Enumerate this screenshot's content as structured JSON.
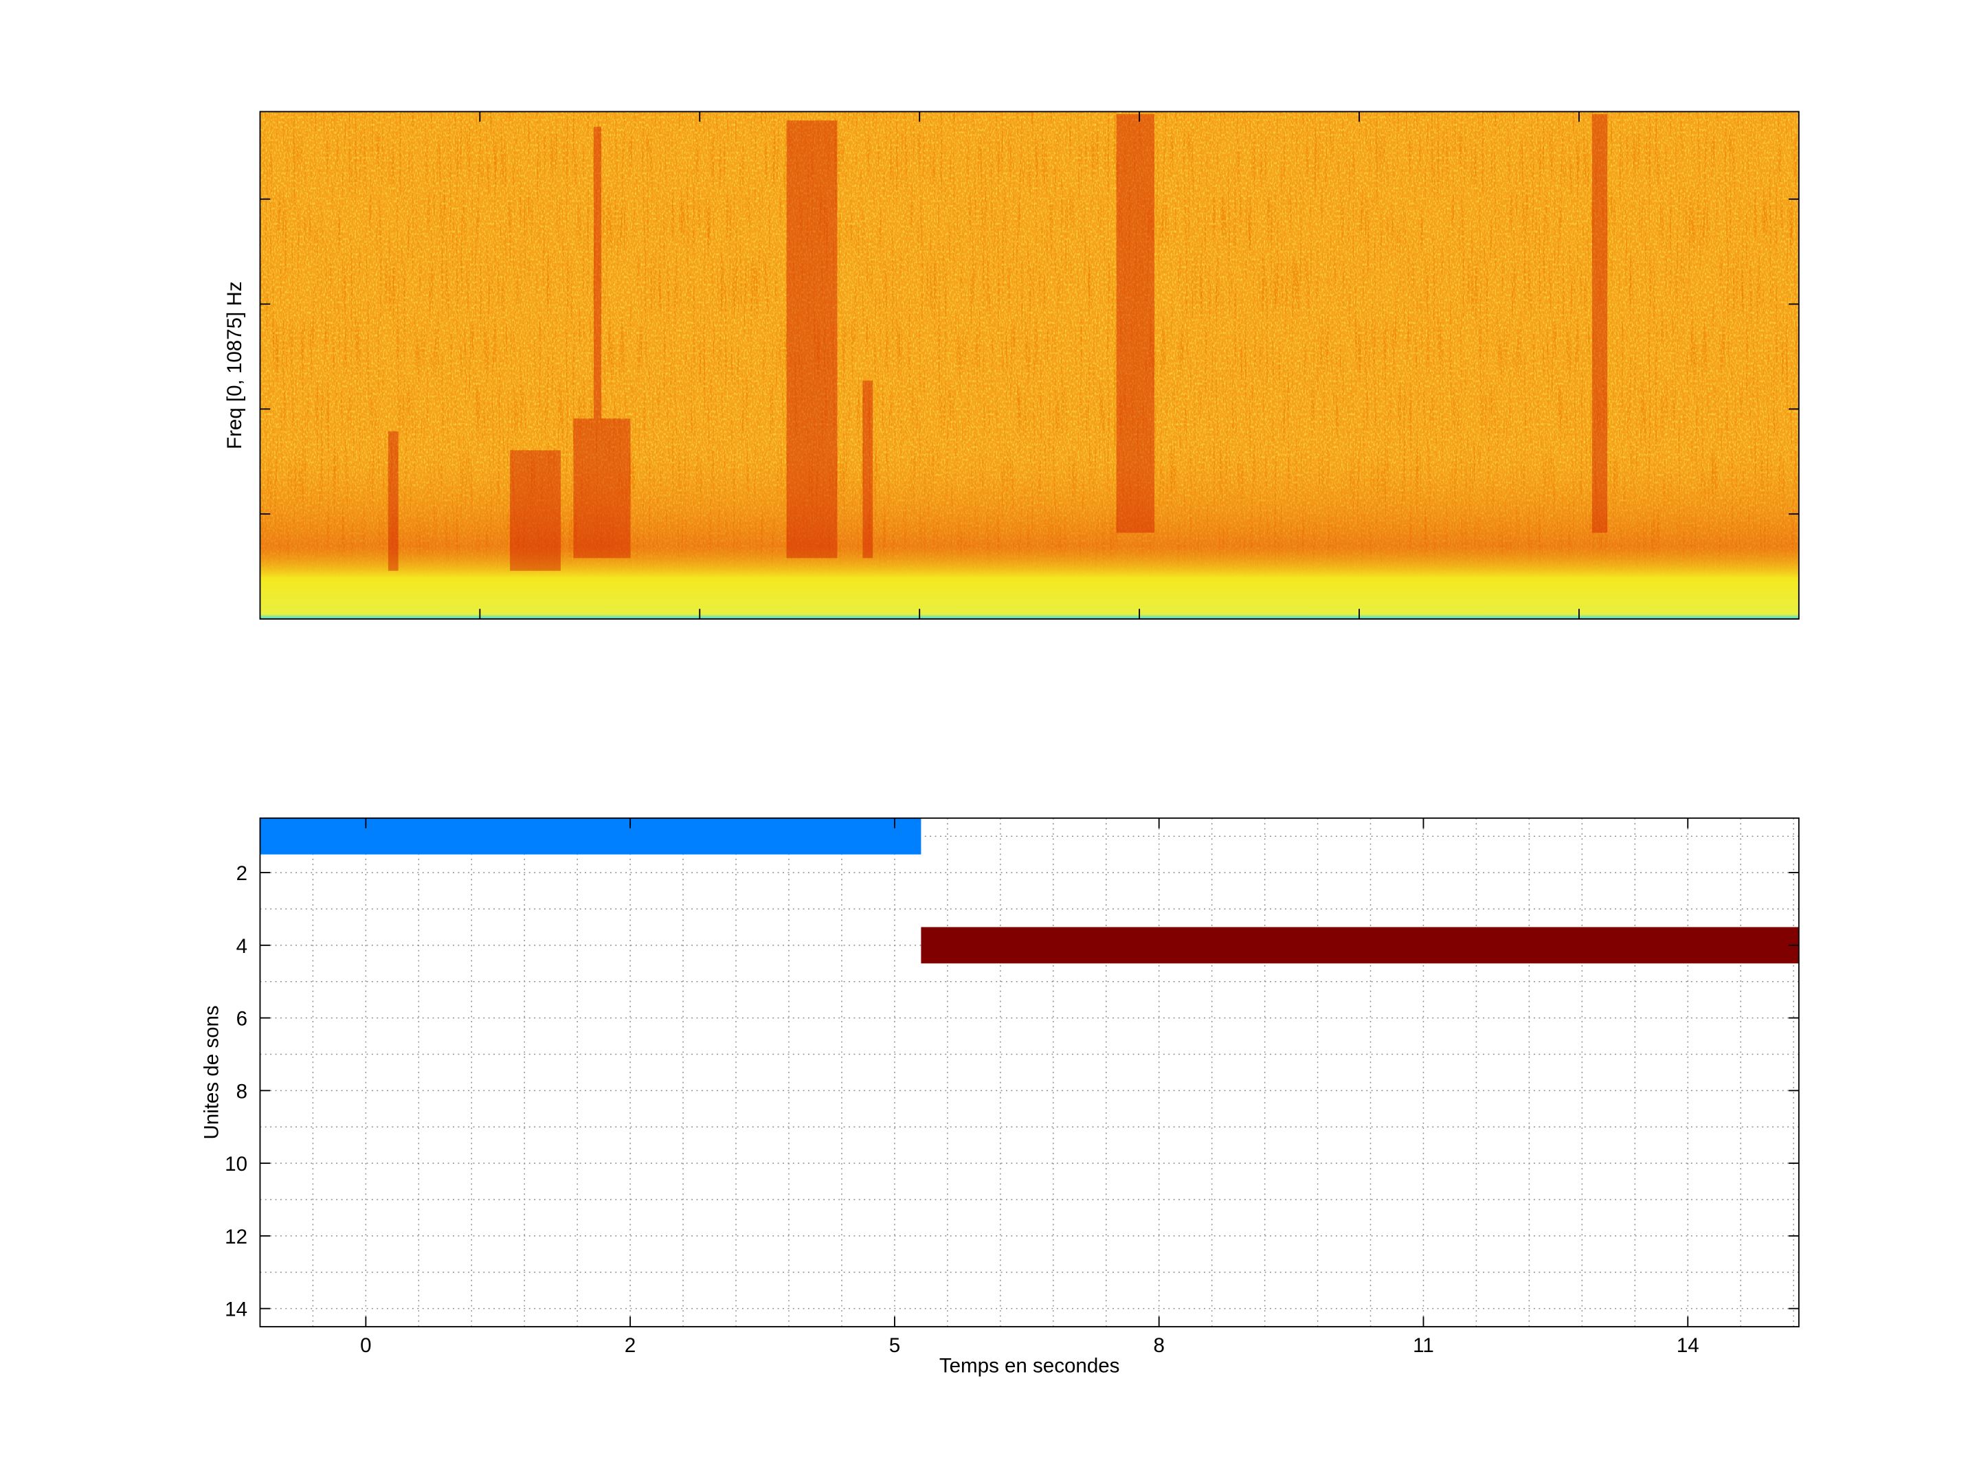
{
  "chart_data": [
    {
      "type": "spectrogram",
      "ylabel": "Freq [0, 10875] Hz",
      "xlim": [
        0,
        7
      ],
      "xticks": [
        1,
        2,
        3,
        4,
        5,
        6
      ],
      "ylim": [
        0,
        10875
      ],
      "yticks": [
        2250,
        4500,
        6750,
        9000
      ]
    },
    {
      "type": "gantt",
      "xlabel": "Temps en secondes",
      "ylabel": "Unites de sons",
      "xlim": [
        0,
        29.1
      ],
      "xticks": [
        {
          "value": 2,
          "label": "0"
        },
        {
          "value": 7,
          "label": "2"
        },
        {
          "value": 12,
          "label": "5"
        },
        {
          "value": 17,
          "label": "8"
        },
        {
          "value": 22,
          "label": "11"
        },
        {
          "value": 27,
          "label": "14"
        }
      ],
      "xminorticks": [
        1,
        2,
        3,
        4,
        5,
        6,
        7,
        8,
        9,
        10,
        11,
        12,
        13,
        14,
        15,
        16,
        17,
        18,
        19,
        20,
        21,
        22,
        23,
        24,
        25,
        26,
        27,
        28,
        29
      ],
      "ylim": [
        0.5,
        14.5
      ],
      "y_reversed": true,
      "yticks": [
        2,
        4,
        6,
        8,
        10,
        12,
        14
      ],
      "yminorticks": [
        1,
        2,
        3,
        4,
        5,
        6,
        7,
        8,
        9,
        10,
        11,
        12,
        13,
        14
      ],
      "grid": true,
      "bars": [
        {
          "row": 1,
          "start": 0,
          "end": 12.5,
          "color": "#0080ff"
        },
        {
          "row": 4,
          "start": 12.5,
          "end": 29.1,
          "color": "#800000"
        }
      ]
    }
  ]
}
